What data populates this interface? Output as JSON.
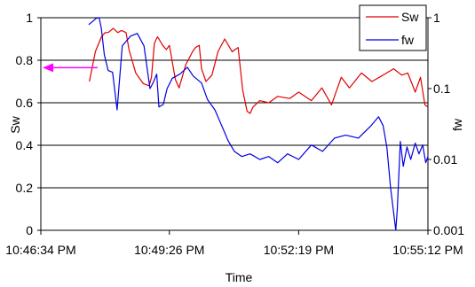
{
  "chart_data": {
    "type": "line",
    "xlabel": "Time",
    "ylabel": "Sw",
    "y2label": "fw",
    "x_ticks": [
      "10:46:34 PM",
      "10:49:26 PM",
      "10:52:19 PM",
      "10:55:12 PM"
    ],
    "xlim": [
      "10:46:34 PM",
      "10:55:12 PM"
    ],
    "ylim": [
      0,
      1
    ],
    "y_ticks": [
      "0",
      "0.2",
      "0.4",
      "0.6",
      "0.8",
      "1"
    ],
    "y2_scale": "log",
    "y2lim": [
      0.001,
      1
    ],
    "y2_ticks": [
      "0.001",
      "0.01",
      "0.1",
      "1"
    ],
    "grid": true,
    "legend_position": "top-right",
    "annotation": {
      "type": "arrow",
      "points_to": "left axis",
      "y": 0.765,
      "color": "#FF00FF"
    },
    "series": [
      {
        "name": "Sw",
        "axis": "left",
        "color": "#E00000",
        "x": [
          "10:47:39 PM",
          "10:47:47 PM",
          "10:47:55 PM",
          "10:48:00 PM",
          "10:48:04 PM",
          "10:48:11 PM",
          "10:48:17 PM",
          "10:48:22 PM",
          "10:48:28 PM",
          "10:48:32 PM",
          "10:48:41 PM",
          "10:48:51 PM",
          "10:48:59 PM",
          "10:49:02 PM",
          "10:49:06 PM",
          "10:49:10 PM",
          "10:49:12 PM",
          "10:49:17 PM",
          "10:49:22 PM",
          "10:49:26 PM",
          "10:49:28 PM",
          "10:49:34 PM",
          "10:49:39 PM",
          "10:49:48 PM",
          "10:49:57 PM",
          "10:50:01 PM",
          "10:50:06 PM",
          "10:50:09 PM",
          "10:50:15 PM",
          "10:50:23 PM",
          "10:50:31 PM",
          "10:50:40 PM",
          "10:50:50 PM",
          "10:50:58 PM",
          "10:51:04 PM",
          "10:51:10 PM",
          "10:51:14 PM",
          "10:51:18 PM",
          "10:51:27 PM",
          "10:51:39 PM",
          "10:51:51 PM",
          "10:52:07 PM",
          "10:52:19 PM",
          "10:52:36 PM",
          "10:52:50 PM",
          "10:53:03 PM",
          "10:53:10 PM",
          "10:53:16 PM",
          "10:53:27 PM",
          "10:53:43 PM",
          "10:53:57 PM",
          "10:54:12 PM",
          "10:54:26 PM",
          "10:54:37 PM",
          "10:54:45 PM",
          "10:54:55 PM",
          "10:55:02 PM",
          "10:55:08 PM",
          "10:55:12 PM"
        ],
        "values": [
          0.7,
          0.84,
          0.91,
          0.93,
          0.93,
          0.95,
          0.93,
          0.94,
          0.93,
          0.85,
          0.74,
          0.69,
          0.68,
          0.72,
          0.88,
          0.91,
          0.9,
          0.87,
          0.85,
          0.87,
          0.83,
          0.71,
          0.67,
          0.78,
          0.84,
          0.86,
          0.87,
          0.76,
          0.7,
          0.73,
          0.84,
          0.9,
          0.84,
          0.86,
          0.66,
          0.56,
          0.55,
          0.58,
          0.61,
          0.6,
          0.63,
          0.62,
          0.65,
          0.61,
          0.67,
          0.59,
          0.66,
          0.72,
          0.67,
          0.74,
          0.7,
          0.73,
          0.76,
          0.73,
          0.74,
          0.65,
          0.72,
          0.59,
          0.58
        ]
      },
      {
        "name": "fw",
        "axis": "right",
        "color": "#0000E0",
        "x": [
          "10:47:38 PM",
          "10:47:44 PM",
          "10:47:48 PM",
          "10:47:52 PM",
          "10:47:55 PM",
          "10:47:59 PM",
          "10:48:04 PM",
          "10:48:10 PM",
          "10:48:16 PM",
          "10:48:23 PM",
          "10:48:27 PM",
          "10:48:34 PM",
          "10:48:43 PM",
          "10:48:52 PM",
          "10:49:00 PM",
          "10:49:04 PM",
          "10:49:09 PM",
          "10:49:12 PM",
          "10:49:18 PM",
          "10:49:23 PM",
          "10:49:30 PM",
          "10:49:40 PM",
          "10:49:50 PM",
          "10:49:58 PM",
          "10:50:09 PM",
          "10:50:17 PM",
          "10:50:27 PM",
          "10:50:36 PM",
          "10:50:45 PM",
          "10:50:53 PM",
          "10:51:03 PM",
          "10:51:14 PM",
          "10:51:27 PM",
          "10:51:39 PM",
          "10:51:51 PM",
          "10:52:04 PM",
          "10:52:19 PM",
          "10:52:36 PM",
          "10:52:51 PM",
          "10:53:07 PM",
          "10:53:22 PM",
          "10:53:39 PM",
          "10:53:56 PM",
          "10:54:06 PM",
          "10:54:12 PM",
          "10:54:17 PM",
          "10:54:22 PM",
          "10:54:29 PM",
          "10:54:31 PM",
          "10:54:35 PM",
          "10:54:39 PM",
          "10:54:44 PM",
          "10:54:49 PM",
          "10:54:55 PM",
          "10:55:00 PM",
          "10:55:05 PM",
          "10:55:09 PM",
          "10:55:12 PM"
        ],
        "values": [
          0.8,
          0.9,
          0.98,
          1.0,
          0.7,
          0.3,
          0.18,
          0.17,
          0.05,
          0.4,
          0.45,
          0.55,
          0.6,
          0.4,
          0.1,
          0.12,
          0.16,
          0.055,
          0.06,
          0.1,
          0.14,
          0.16,
          0.2,
          0.15,
          0.12,
          0.07,
          0.05,
          0.03,
          0.018,
          0.013,
          0.011,
          0.012,
          0.01,
          0.011,
          0.009,
          0.012,
          0.01,
          0.016,
          0.013,
          0.02,
          0.022,
          0.02,
          0.03,
          0.04,
          0.03,
          0.015,
          0.004,
          0.001,
          0.002,
          0.018,
          0.008,
          0.015,
          0.01,
          0.017,
          0.012,
          0.016,
          0.009,
          0.011
        ]
      }
    ]
  }
}
